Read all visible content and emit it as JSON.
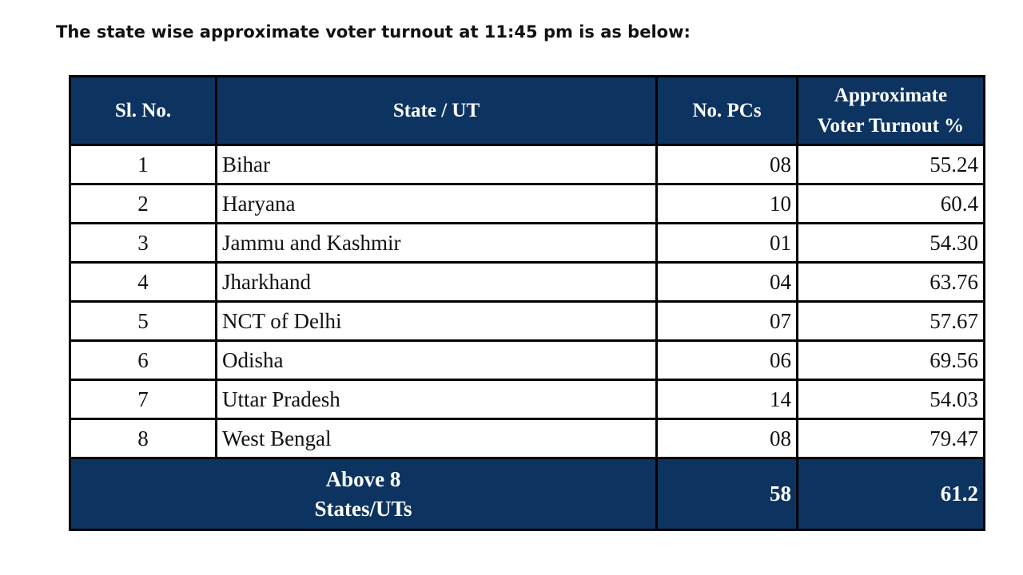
{
  "header": {
    "title": "The state wise approximate voter turnout at 11:45 pm is as below:"
  },
  "table": {
    "columns": [
      "Sl. No.",
      "State / UT",
      "No. PCs",
      "Approximate\nVoter Turnout %"
    ],
    "rows": [
      [
        "1",
        "Bihar",
        "08",
        "55.24"
      ],
      [
        "2",
        "Haryana",
        "10",
        "60.4"
      ],
      [
        "3",
        "Jammu and Kashmir",
        "01",
        "54.30"
      ],
      [
        "4",
        "Jharkhand",
        "04",
        "63.76"
      ],
      [
        "5",
        "NCT of Delhi",
        "07",
        "57.67"
      ],
      [
        "6",
        "Odisha",
        "06",
        "69.56"
      ],
      [
        "7",
        "Uttar Pradesh",
        "14",
        "54.03"
      ],
      [
        "8",
        "West Bengal",
        "08",
        "79.47"
      ]
    ],
    "total": [
      "Above 8\nStates/UTs",
      "58",
      "61.2"
    ]
  }
}
